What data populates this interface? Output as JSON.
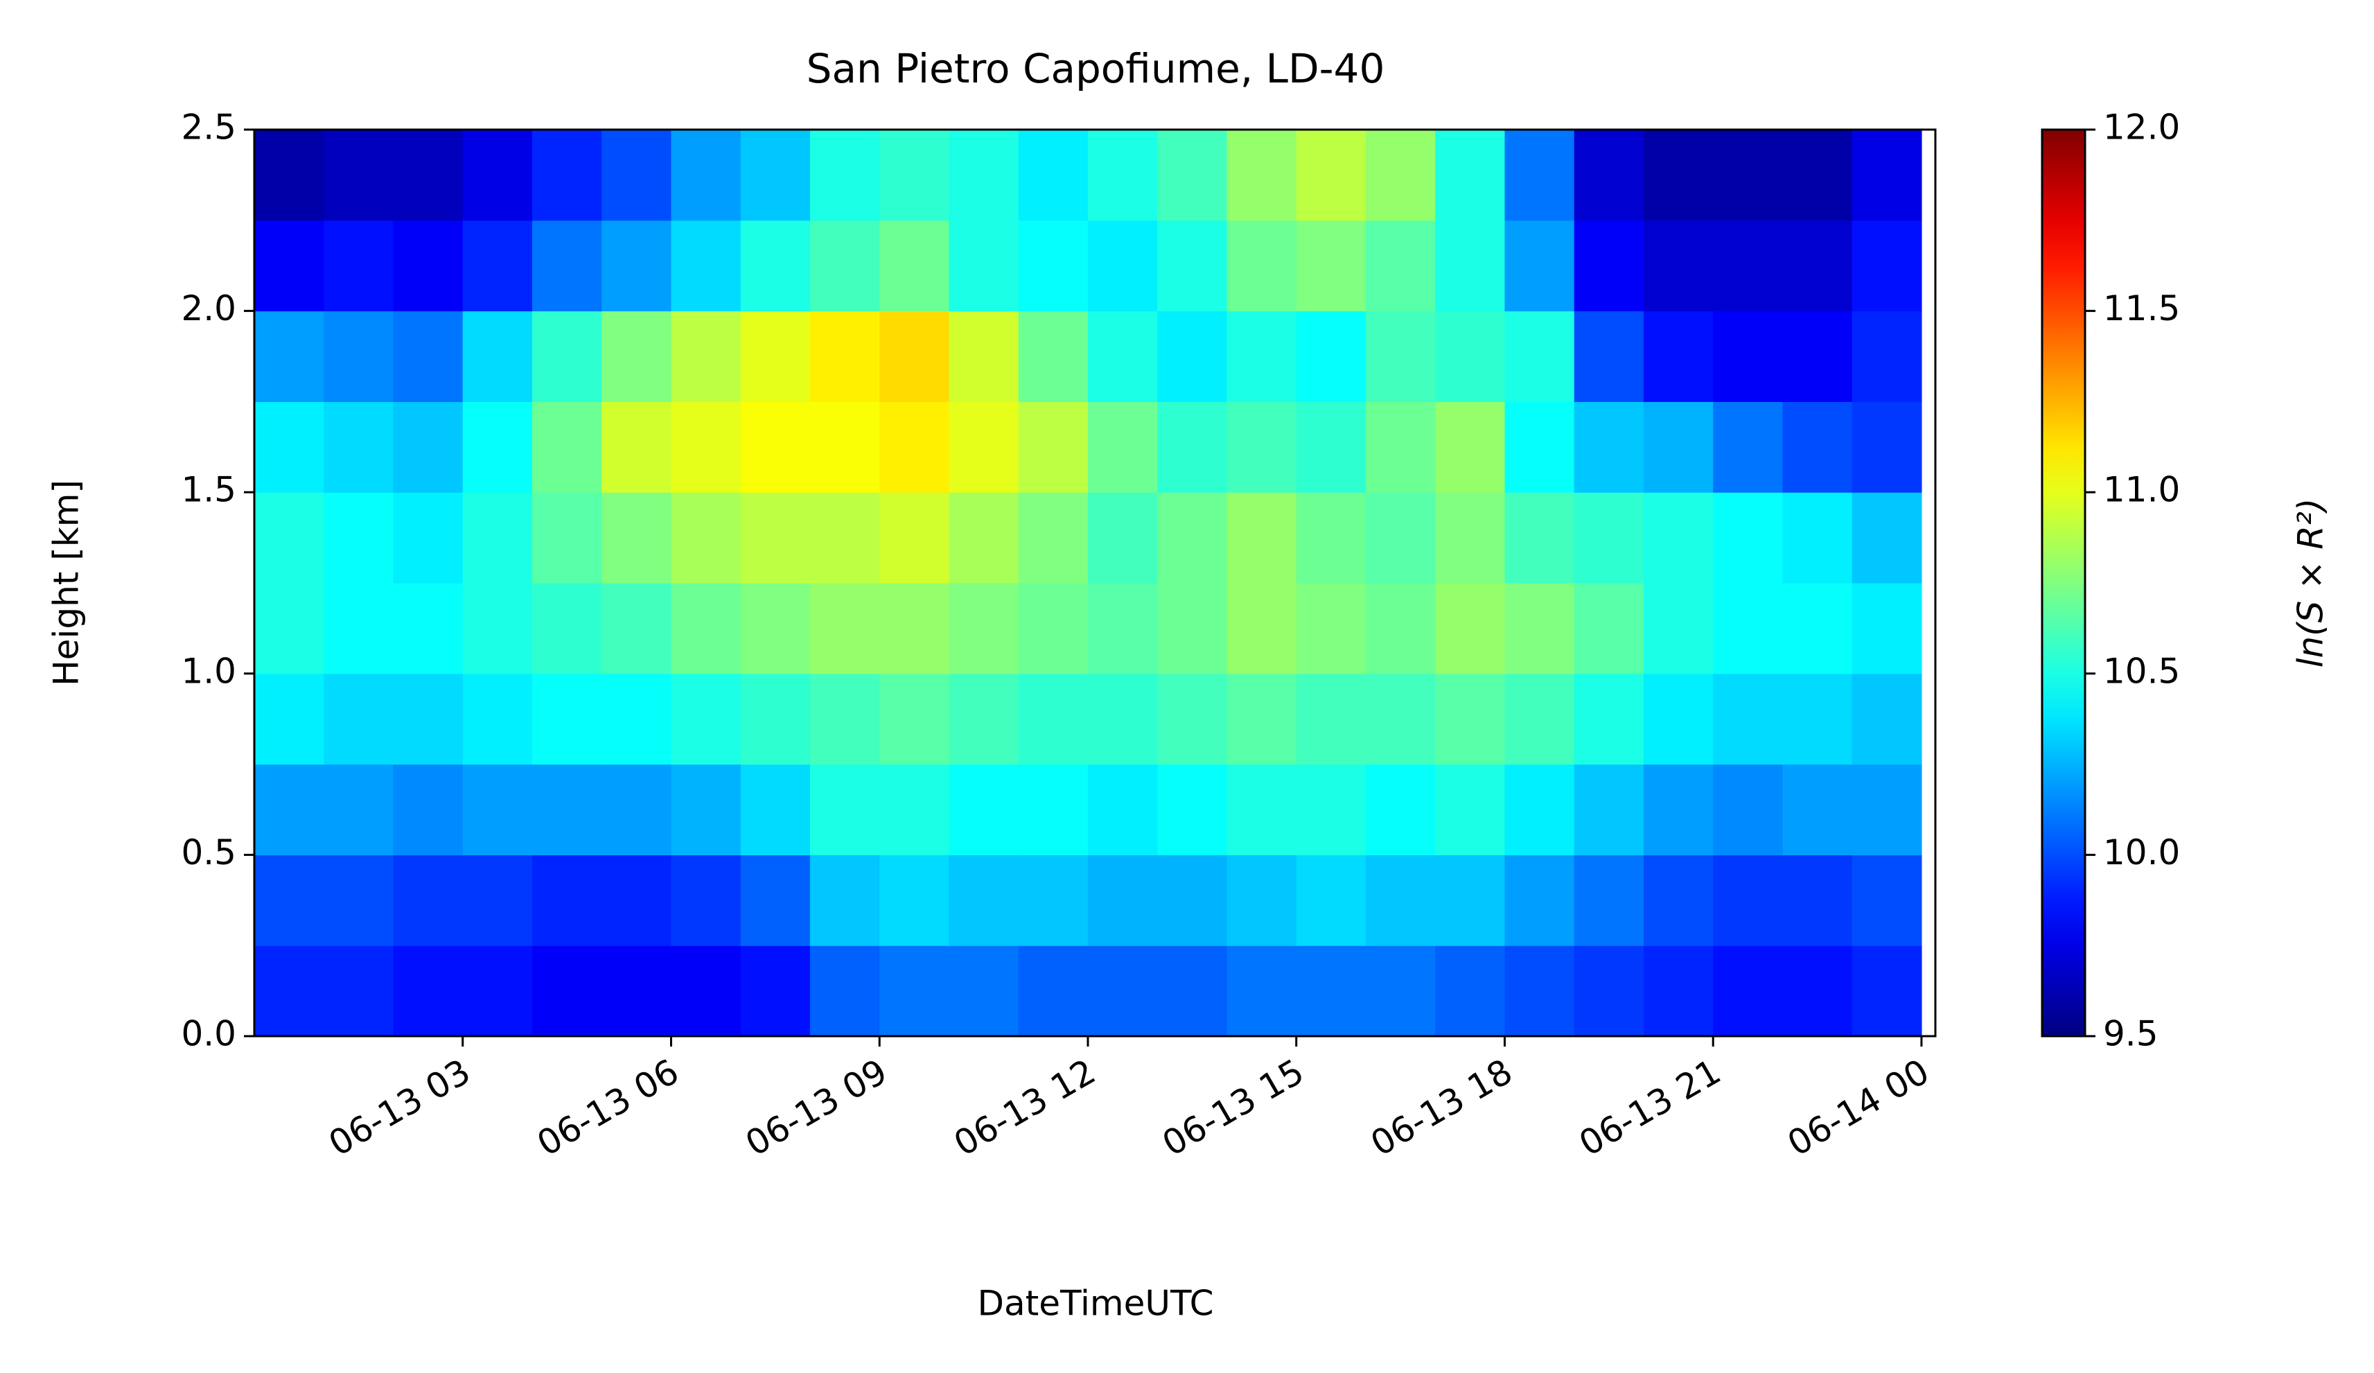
{
  "chart_data": {
    "type": "heatmap",
    "title": "San Pietro Capofiume, LD-40",
    "xlabel": "DateTimeUTC",
    "ylabel": "Height [km]",
    "colorbar_label": "ln(S × R²)",
    "colormap": "jet",
    "xlim": [
      0,
      24.2
    ],
    "xticks": [
      {
        "value": 3,
        "label": "06-13 03"
      },
      {
        "value": 6,
        "label": "06-13 06"
      },
      {
        "value": 9,
        "label": "06-13 09"
      },
      {
        "value": 12,
        "label": "06-13 12"
      },
      {
        "value": 15,
        "label": "06-13 15"
      },
      {
        "value": 18,
        "label": "06-13 18"
      },
      {
        "value": 21,
        "label": "06-13 21"
      },
      {
        "value": 24,
        "label": "06-14 00"
      }
    ],
    "ylim": [
      0,
      2.5
    ],
    "yticks": [
      {
        "value": 0,
        "label": "0.0"
      },
      0.5,
      {
        "value": 1,
        "label": "1.0"
      },
      1.5,
      {
        "value": 2,
        "label": "2.0"
      },
      2.5
    ],
    "clim": [
      9.5,
      12
    ],
    "cticks": [
      9.5,
      {
        "value": 10,
        "label": "10.0"
      },
      10.5,
      {
        "value": 11,
        "label": "11.0"
      },
      11.5,
      {
        "value": 12,
        "label": "12.0"
      }
    ],
    "x": [
      0.5,
      1.5,
      2.5,
      3.5,
      4.5,
      5.5,
      6.5,
      7.5,
      8.5,
      9.5,
      10.5,
      11.5,
      12.5,
      13.5,
      14.5,
      15.5,
      16.5,
      17.5,
      18.5,
      19.5,
      20.5,
      21.5,
      22.5,
      23.5
    ],
    "y": [
      0.125,
      0.375,
      0.625,
      0.875,
      1.125,
      1.375,
      1.625,
      1.875,
      2.125,
      2.375
    ],
    "z": [
      [
        9.9,
        9.9,
        9.85,
        9.85,
        9.8,
        9.8,
        9.8,
        9.85,
        10.05,
        10.1,
        10.1,
        10.05,
        10.05,
        10.05,
        10.1,
        10.1,
        10.1,
        10.05,
        10.0,
        9.95,
        9.9,
        9.85,
        9.85,
        9.9
      ],
      [
        10.0,
        10.0,
        9.95,
        9.95,
        9.9,
        9.9,
        9.95,
        10.05,
        10.3,
        10.35,
        10.3,
        10.3,
        10.25,
        10.25,
        10.3,
        10.35,
        10.3,
        10.3,
        10.2,
        10.1,
        10.0,
        9.95,
        9.95,
        10.0
      ],
      [
        10.2,
        10.2,
        10.15,
        10.2,
        10.2,
        10.2,
        10.25,
        10.35,
        10.5,
        10.5,
        10.45,
        10.45,
        10.4,
        10.45,
        10.5,
        10.5,
        10.45,
        10.5,
        10.4,
        10.3,
        10.2,
        10.15,
        10.2,
        10.2
      ],
      [
        10.4,
        10.35,
        10.35,
        10.4,
        10.45,
        10.45,
        10.5,
        10.55,
        10.6,
        10.65,
        10.6,
        10.55,
        10.55,
        10.6,
        10.65,
        10.6,
        10.6,
        10.65,
        10.6,
        10.5,
        10.4,
        10.35,
        10.35,
        10.3
      ],
      [
        10.5,
        10.45,
        10.45,
        10.5,
        10.55,
        10.6,
        10.7,
        10.75,
        10.8,
        10.8,
        10.75,
        10.7,
        10.65,
        10.7,
        10.8,
        10.75,
        10.7,
        10.8,
        10.75,
        10.65,
        10.5,
        10.45,
        10.45,
        10.4
      ],
      [
        10.5,
        10.45,
        10.4,
        10.5,
        10.65,
        10.75,
        10.85,
        10.9,
        10.9,
        10.95,
        10.85,
        10.75,
        10.6,
        10.7,
        10.8,
        10.7,
        10.65,
        10.75,
        10.6,
        10.55,
        10.5,
        10.45,
        10.4,
        10.3
      ],
      [
        10.4,
        10.35,
        10.3,
        10.45,
        10.7,
        10.95,
        11.0,
        11.05,
        11.05,
        11.1,
        11.0,
        10.9,
        10.7,
        10.55,
        10.6,
        10.55,
        10.7,
        10.8,
        10.45,
        10.3,
        10.25,
        10.1,
        10.0,
        9.95
      ],
      [
        10.2,
        10.15,
        10.1,
        10.35,
        10.55,
        10.75,
        10.9,
        11.0,
        11.1,
        11.15,
        10.95,
        10.7,
        10.5,
        10.4,
        10.5,
        10.45,
        10.6,
        10.55,
        10.5,
        10.0,
        9.85,
        9.8,
        9.8,
        9.9
      ],
      [
        9.8,
        9.85,
        9.8,
        9.9,
        10.1,
        10.2,
        10.35,
        10.5,
        10.6,
        10.7,
        10.5,
        10.45,
        10.4,
        10.5,
        10.7,
        10.75,
        10.65,
        10.5,
        10.2,
        9.8,
        9.7,
        9.7,
        9.7,
        9.85
      ],
      [
        9.6,
        9.65,
        9.65,
        9.75,
        9.9,
        10.0,
        10.2,
        10.3,
        10.5,
        10.55,
        10.5,
        10.4,
        10.5,
        10.6,
        10.8,
        10.9,
        10.8,
        10.5,
        10.1,
        9.7,
        9.6,
        9.6,
        9.6,
        9.75
      ]
    ]
  }
}
